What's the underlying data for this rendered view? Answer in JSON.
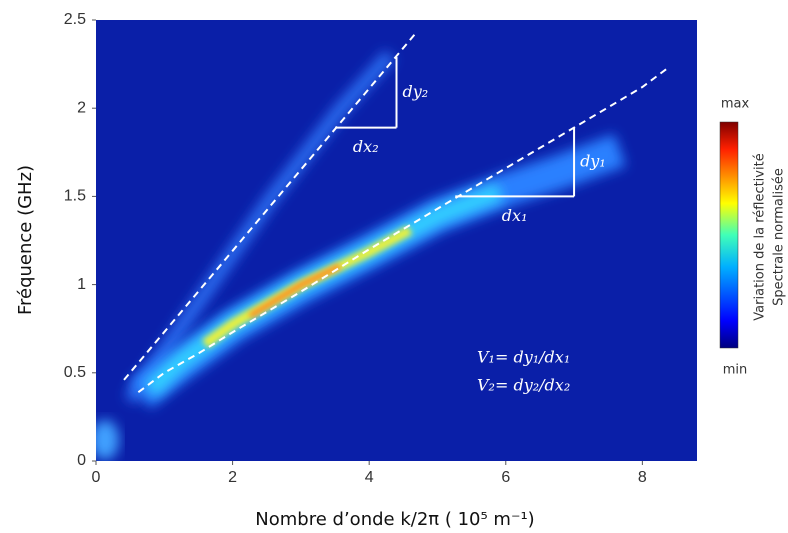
{
  "chart_data": {
    "type": "heatmap-lines",
    "xlabel": "Nombre d’onde k/2π ( 10⁵ m⁻¹)",
    "ylabel": "Fréquence (GHz)",
    "xlim": [
      0,
      8.8
    ],
    "ylim": [
      0,
      2.5
    ],
    "xticks": [
      0,
      2,
      4,
      6,
      8
    ],
    "yticks": [
      0,
      0.5,
      1,
      1.5,
      2,
      2.5
    ],
    "lines": [
      {
        "color": "#ffffff",
        "x": [
          0.41,
          4.67
        ],
        "y": [
          0.46,
          2.42
        ]
      },
      {
        "color": "#ffffff",
        "x": [
          0.62,
          1,
          1.5,
          2,
          3,
          4,
          5,
          6,
          7,
          8,
          8.38
        ],
        "y": [
          0.39,
          0.5,
          0.61,
          0.73,
          0.96,
          1.2,
          1.43,
          1.66,
          1.89,
          2.12,
          2.23
        ]
      }
    ],
    "triangles": [
      {
        "x0": 3.5,
        "x1": 4.4,
        "y0": 1.89,
        "y1": 2.29,
        "dx_label": "dx₂",
        "dy_label": "dy₂"
      },
      {
        "x0": 5.26,
        "x1": 7.0,
        "y0": 1.5,
        "y1": 1.89,
        "dx_label": "dx₁",
        "dy_label": "dy₁"
      }
    ],
    "formulas": [
      "V₁= dy₁/dx₁",
      "V₂= dy₂/dx₂"
    ],
    "colorbar": {
      "max": "max",
      "min": "min",
      "label": [
        "Variation de la réflectivité",
        "Spectrale normalisée"
      ]
    }
  }
}
